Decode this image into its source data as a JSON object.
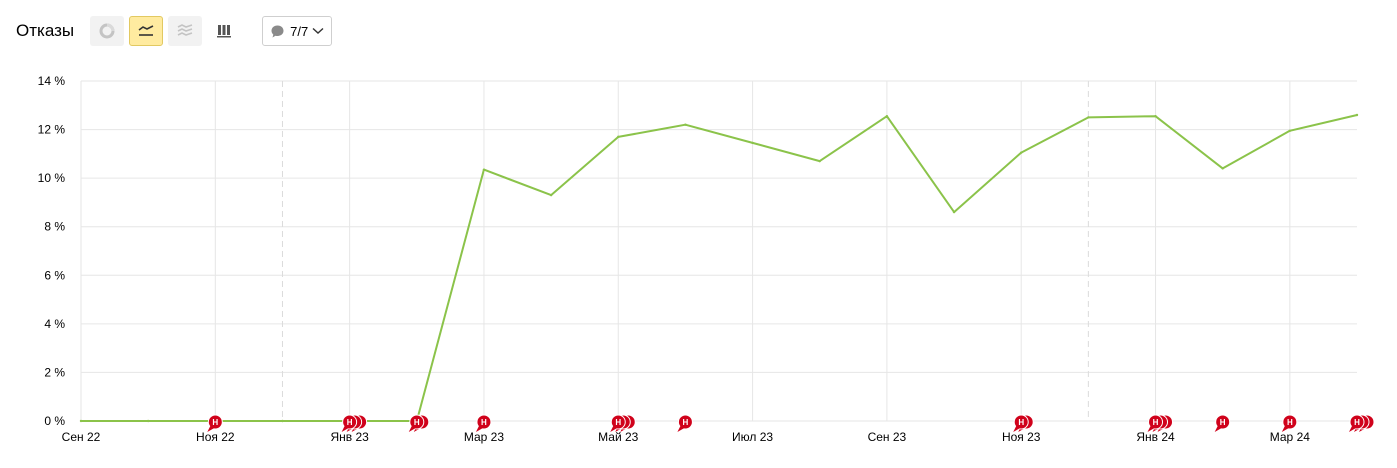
{
  "header": {
    "title": "Отказы",
    "annotations_count": "7/7",
    "view_buttons": [
      {
        "icon": "pie-chart-icon",
        "active": false
      },
      {
        "icon": "line-chart-icon",
        "active": true
      },
      {
        "icon": "area-chart-icon",
        "active": false
      },
      {
        "icon": "bar-chart-icon",
        "active": false
      }
    ]
  },
  "colors": {
    "line": "#8bc34a",
    "marker": "#d0021b",
    "grid": "#e6e6e6",
    "active_button": "#ffeba0"
  },
  "chart_data": {
    "type": "line",
    "ylim": [
      0,
      14
    ],
    "yticks": [
      "0 %",
      "2 %",
      "4 %",
      "6 %",
      "8 %",
      "10 %",
      "12 %",
      "14 %"
    ],
    "xticks": [
      "Сен 22",
      "Ноя 22",
      "Янв 23",
      "Мар 23",
      "Май 23",
      "Июл 23",
      "Сен 23",
      "Ноя 23",
      "Янв 24",
      "Мар 24"
    ],
    "grid": true,
    "series": [
      {
        "x": [
          "2022-09",
          "2022-10",
          "2022-11",
          "2022-12",
          "2023-01",
          "2023-02",
          "2023-03",
          "2023-04",
          "2023-05",
          "2023-06",
          "2023-07",
          "2023-08",
          "2023-09",
          "2023-10",
          "2023-11",
          "2023-12",
          "2024-01",
          "2024-02",
          "2024-03",
          "2024-04"
        ],
        "values": [
          0,
          0,
          0,
          0,
          0,
          0,
          10.35,
          9.3,
          11.7,
          12.2,
          11.45,
          10.7,
          12.55,
          8.6,
          11.05,
          12.5,
          12.55,
          10.4,
          11.95,
          12.6
        ]
      }
    ],
    "annotations": [
      {
        "month": "2022-11",
        "count": 1,
        "label": "Н"
      },
      {
        "month": "2023-01",
        "count": 3,
        "label": "Н"
      },
      {
        "month": "2023-02",
        "count": 2,
        "label": "Н"
      },
      {
        "month": "2023-03",
        "count": 1,
        "label": "Н"
      },
      {
        "month": "2023-05",
        "count": 3,
        "label": "Н"
      },
      {
        "month": "2023-06",
        "count": 1,
        "label": "Н"
      },
      {
        "month": "2023-11",
        "count": 2,
        "label": "Н"
      },
      {
        "month": "2024-01",
        "count": 3,
        "label": "Н"
      },
      {
        "month": "2024-02",
        "count": 1,
        "label": "Н"
      },
      {
        "month": "2024-03",
        "count": 1,
        "label": "Н"
      },
      {
        "month": "2024-04",
        "count": 3,
        "label": "Н"
      }
    ]
  }
}
